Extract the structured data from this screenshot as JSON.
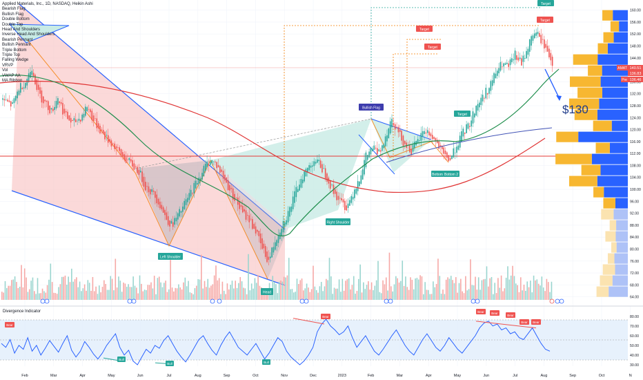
{
  "legend": {
    "symbol": "Applied Materials, Inc., 1D, NASDAQ, Heikin Ashi",
    "studies": [
      "Bearish Flag",
      "Bullish Flag",
      "Double Bottom",
      "Double Top",
      "Head And Shoulders",
      "Inverse Head And Shoulders",
      "Bearish Pennant",
      "Bullish Pennant",
      "Triple Bottom",
      "Triple Top",
      "Falling Wedge",
      "VRVP",
      "Vol",
      "VWAP AA",
      "MA Ribbon"
    ]
  },
  "price_tags": {
    "current": "140.51",
    "second": "136.83",
    "third": "136.46",
    "symbol_badge": "AMAT",
    "pre_badge": "Pre"
  },
  "annotations": {
    "target_labels": [
      "Target",
      "Target",
      "Target",
      "Target",
      "Target"
    ],
    "bullish_flag": "Bullish Flag",
    "right_shoulder": "Right Shoulder",
    "left_shoulder": "Left Shoulder",
    "head": "Head",
    "bottom_labels": [
      "Bottom",
      "Bottom 2"
    ],
    "price_callout": "$130",
    "osc_title": "Divergence Indicator",
    "bear_labels": [
      "Bear",
      "Bear",
      "Bear",
      "Bear",
      "Bear",
      "Bear",
      "Bear"
    ],
    "bull_labels": [
      "Bull",
      "Bull",
      "Bull"
    ]
  },
  "colors": {
    "up": "#26a69a",
    "down": "#ef5350",
    "wedge_fill": "#f9c9c9",
    "pattern_fill": "#c8ebe5",
    "trend_line": "#2962ff",
    "ma_slow": "#e03434",
    "ma_fast": "#1f8e4d",
    "vrvp_up": "#2962ff",
    "vrvp_down": "#f7b731",
    "osc_line": "#2962ff",
    "osc_band": "#e3effc"
  },
  "chart_data": {
    "type": "candlestick",
    "x_tick_labels": [
      "Feb",
      "Mar",
      "Apr",
      "May",
      "Jun",
      "Jul",
      "Aug",
      "Sep",
      "Oct",
      "Nov",
      "Dec",
      "2023",
      "Feb",
      "Mar",
      "Apr",
      "May",
      "Jun",
      "Jul",
      "Aug",
      "Sep",
      "Oct",
      "N"
    ],
    "y_tick_labels": [
      "160.00",
      "156.00",
      "152.00",
      "148.00",
      "144.00",
      "140.00",
      "136.00",
      "132.00",
      "128.00",
      "124.00",
      "120.00",
      "116.00",
      "112.00",
      "108.00",
      "104.00",
      "100.00",
      "96.00",
      "92.00",
      "88.00",
      "84.00",
      "80.00",
      "76.00",
      "72.00",
      "68.00",
      "64.00"
    ],
    "ylim": [
      63,
      162
    ],
    "price_path": [
      [
        0,
        130
      ],
      [
        6,
        128
      ],
      [
        10,
        134
      ],
      [
        14,
        136
      ],
      [
        18,
        141
      ],
      [
        22,
        132
      ],
      [
        26,
        129
      ],
      [
        30,
        126
      ],
      [
        34,
        131
      ],
      [
        38,
        125
      ],
      [
        43,
        122
      ],
      [
        48,
        124
      ],
      [
        52,
        128
      ],
      [
        56,
        123
      ],
      [
        60,
        120
      ],
      [
        64,
        117
      ],
      [
        68,
        115
      ],
      [
        72,
        112
      ],
      [
        76,
        110
      ],
      [
        80,
        108
      ],
      [
        84,
        106
      ],
      [
        88,
        101
      ],
      [
        92,
        99
      ],
      [
        96,
        96
      ],
      [
        100,
        91
      ],
      [
        104,
        88
      ],
      [
        108,
        91
      ],
      [
        112,
        95
      ],
      [
        116,
        99
      ],
      [
        120,
        103
      ],
      [
        124,
        107
      ],
      [
        128,
        110
      ],
      [
        132,
        108
      ],
      [
        136,
        104
      ],
      [
        140,
        100
      ],
      [
        144,
        96
      ],
      [
        148,
        92
      ],
      [
        152,
        90
      ],
      [
        156,
        86
      ],
      [
        160,
        80
      ],
      [
        164,
        76
      ],
      [
        168,
        83
      ],
      [
        172,
        88
      ],
      [
        176,
        92
      ],
      [
        180,
        98
      ],
      [
        184,
        104
      ],
      [
        188,
        107
      ],
      [
        192,
        110
      ],
      [
        196,
        108
      ],
      [
        200,
        104
      ],
      [
        204,
        99
      ],
      [
        208,
        96
      ],
      [
        212,
        94
      ],
      [
        216,
        99
      ],
      [
        220,
        104
      ],
      [
        224,
        111
      ],
      [
        228,
        114
      ],
      [
        232,
        112
      ],
      [
        236,
        118
      ],
      [
        240,
        124
      ],
      [
        244,
        119
      ],
      [
        248,
        115
      ],
      [
        252,
        113
      ],
      [
        256,
        116
      ],
      [
        260,
        120
      ],
      [
        264,
        118
      ],
      [
        268,
        115
      ],
      [
        272,
        111
      ],
      [
        276,
        110
      ],
      [
        280,
        115
      ],
      [
        284,
        119
      ],
      [
        288,
        122
      ],
      [
        292,
        128
      ],
      [
        296,
        131
      ],
      [
        300,
        134
      ],
      [
        304,
        139
      ],
      [
        308,
        142
      ],
      [
        312,
        141
      ],
      [
        316,
        145
      ],
      [
        320,
        142
      ],
      [
        324,
        148
      ],
      [
        328,
        153
      ],
      [
        332,
        150
      ],
      [
        336,
        146
      ],
      [
        340,
        141
      ]
    ],
    "oscillator": {
      "name": "Divergence Indicator",
      "ylim": [
        25,
        82
      ],
      "y_tick_labels": [
        "80.00",
        "70.00",
        "60.00",
        "50.00",
        "40.00",
        "30.00"
      ],
      "values": [
        52,
        48,
        56,
        42,
        50,
        46,
        58,
        44,
        50,
        40,
        47,
        55,
        49,
        43,
        52,
        60,
        45,
        38,
        44,
        54,
        48,
        41,
        36,
        42,
        50,
        56,
        62,
        48,
        40,
        45,
        34,
        30,
        38,
        46,
        42,
        50,
        47,
        55,
        60,
        52,
        44,
        38,
        33,
        40,
        48,
        56,
        60,
        52,
        45,
        40,
        50,
        58,
        64,
        56,
        48,
        44,
        40,
        46,
        52,
        44,
        36,
        42,
        50,
        58,
        54,
        44,
        38,
        34,
        30,
        34,
        40,
        48,
        64,
        72,
        77,
        70,
        66,
        61,
        64,
        70,
        58,
        48,
        54,
        60,
        52,
        44,
        40,
        46,
        53,
        60,
        66,
        58,
        50,
        44,
        40,
        48,
        56,
        62,
        55,
        48,
        44,
        50,
        58,
        52,
        46,
        42,
        48,
        54,
        60,
        68,
        73,
        75,
        70,
        72,
        66,
        68,
        62,
        64,
        58,
        56,
        62,
        68,
        60,
        52,
        46,
        44
      ]
    }
  }
}
